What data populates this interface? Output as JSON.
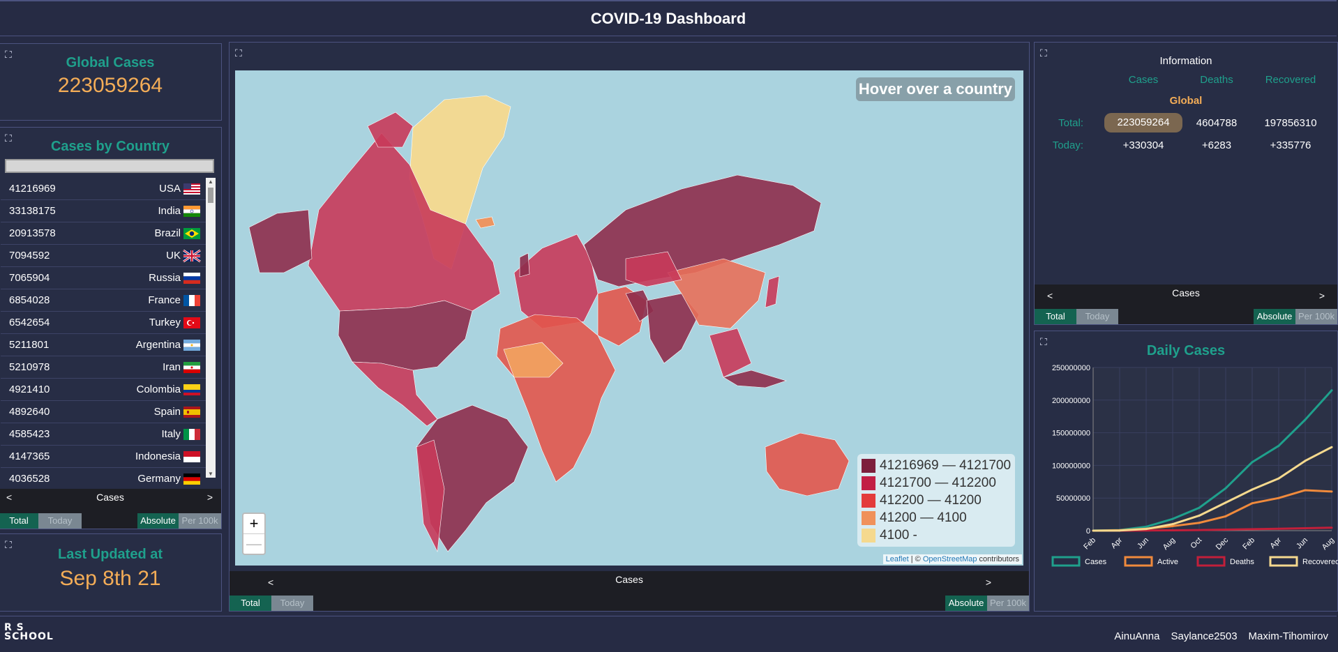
{
  "header": {
    "title": "COVID-19 Dashboard"
  },
  "global": {
    "title": "Global Cases",
    "value": "223059264"
  },
  "countries": {
    "title": "Cases by Country",
    "rows": [
      {
        "value": "41216969",
        "name": "USA",
        "flag": "usa"
      },
      {
        "value": "33138175",
        "name": "India",
        "flag": "india"
      },
      {
        "value": "20913578",
        "name": "Brazil",
        "flag": "brazil"
      },
      {
        "value": "7094592",
        "name": "UK",
        "flag": "uk"
      },
      {
        "value": "7065904",
        "name": "Russia",
        "flag": "russia"
      },
      {
        "value": "6854028",
        "name": "France",
        "flag": "france"
      },
      {
        "value": "6542654",
        "name": "Turkey",
        "flag": "turkey"
      },
      {
        "value": "5211801",
        "name": "Argentina",
        "flag": "argentina"
      },
      {
        "value": "5210978",
        "name": "Iran",
        "flag": "iran"
      },
      {
        "value": "4921410",
        "name": "Colombia",
        "flag": "colombia"
      },
      {
        "value": "4892640",
        "name": "Spain",
        "flag": "spain"
      },
      {
        "value": "4585423",
        "name": "Italy",
        "flag": "italy"
      },
      {
        "value": "4147365",
        "name": "Indonesia",
        "flag": "indonesia"
      },
      {
        "value": "4036528",
        "name": "Germany",
        "flag": "germany"
      }
    ]
  },
  "controls": {
    "prev": "<",
    "next": ">",
    "label": "Cases",
    "total": "Total",
    "today": "Today",
    "absolute": "Absolute",
    "per100k": "Per 100k"
  },
  "updated": {
    "title": "Last Updated at",
    "value": "Sep 8th 21"
  },
  "map": {
    "hover": "Hover over a country",
    "zoom_in": "+",
    "zoom_out": "—",
    "legend": [
      {
        "label": "41216969 — 4121700",
        "color": "#7d1f3c"
      },
      {
        "label": "4121700 — 412200",
        "color": "#c21f45"
      },
      {
        "label": "412200 — 41200",
        "color": "#e33b3b"
      },
      {
        "label": "41200 — 4100",
        "color": "#f0915a"
      },
      {
        "label": "4100 -",
        "color": "#f5d98e"
      }
    ],
    "attrib_leaflet": "Leaflet",
    "attrib_sep": " | © ",
    "attrib_osm": "OpenStreetMap",
    "attrib_contrib": " contributors"
  },
  "info": {
    "title": "Information",
    "headers": {
      "cases": "Cases",
      "deaths": "Deaths",
      "recovered": "Recovered"
    },
    "region": "Global",
    "total_label": "Total:",
    "today_label": "Today:",
    "total": {
      "cases": "223059264",
      "deaths": "4604788",
      "recovered": "197856310"
    },
    "today": {
      "cases": "+330304",
      "deaths": "+6283",
      "recovered": "+335776"
    }
  },
  "chart_data": {
    "type": "line",
    "title": "Daily Cases",
    "x": [
      "Feb",
      "Apr",
      "Jun",
      "Aug",
      "Oct",
      "Dec",
      "Feb",
      "Apr",
      "Jun",
      "Aug"
    ],
    "ylim": [
      0,
      250000000
    ],
    "yticks": [
      "250000000",
      "200000000",
      "150000000",
      "100000000",
      "50000000",
      "0"
    ],
    "grid": true,
    "legend_position": "bottom",
    "series": [
      {
        "name": "Cases",
        "color": "#1fa08c",
        "values": [
          100000,
          1000000,
          6000000,
          18000000,
          35000000,
          65000000,
          105000000,
          130000000,
          170000000,
          215000000
        ]
      },
      {
        "name": "Active",
        "color": "#f08a3c",
        "values": [
          50000,
          700000,
          3000000,
          7000000,
          12000000,
          22000000,
          42000000,
          50000000,
          62000000,
          60000000
        ]
      },
      {
        "name": "Deaths",
        "color": "#c21f3a",
        "values": [
          0,
          50000,
          300000,
          600000,
          1000000,
          1600000,
          2300000,
          3000000,
          3700000,
          4600000
        ]
      },
      {
        "name": "Recovered",
        "color": "#f5d98e",
        "values": [
          20000,
          200000,
          2500000,
          10000000,
          23000000,
          43000000,
          63000000,
          80000000,
          107000000,
          128000000
        ]
      }
    ]
  },
  "footer": {
    "logo_top": "R  S",
    "logo_bottom": "SCHOOL",
    "authors": [
      "AinuAnna",
      "Saylance2503",
      "Maxim-Tihomirov"
    ]
  }
}
